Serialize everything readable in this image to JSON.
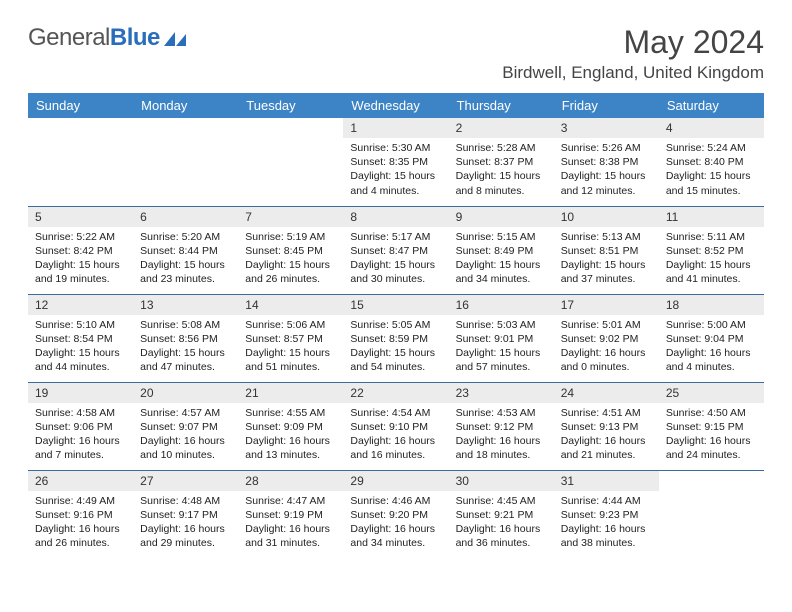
{
  "logo": {
    "word1": "General",
    "word2": "Blue"
  },
  "title": "May 2024",
  "location": "Birdwell, England, United Kingdom",
  "colors": {
    "header_bg": "#3d84c6",
    "header_fg": "#ffffff",
    "daynum_bg": "#ececec",
    "row_divider": "#3d6a9e",
    "logo_blue": "#2a6ebb"
  },
  "typography": {
    "title_size": 32,
    "location_size": 17,
    "header_size": 13,
    "daynum_size": 12,
    "body_size": 10.5
  },
  "dayNames": [
    "Sunday",
    "Monday",
    "Tuesday",
    "Wednesday",
    "Thursday",
    "Friday",
    "Saturday"
  ],
  "weeks": [
    [
      {
        "empty": true
      },
      {
        "empty": true
      },
      {
        "empty": true
      },
      {
        "num": "1",
        "sunrise": "Sunrise: 5:30 AM",
        "sunset": "Sunset: 8:35 PM",
        "daylight": "Daylight: 15 hours and 4 minutes."
      },
      {
        "num": "2",
        "sunrise": "Sunrise: 5:28 AM",
        "sunset": "Sunset: 8:37 PM",
        "daylight": "Daylight: 15 hours and 8 minutes."
      },
      {
        "num": "3",
        "sunrise": "Sunrise: 5:26 AM",
        "sunset": "Sunset: 8:38 PM",
        "daylight": "Daylight: 15 hours and 12 minutes."
      },
      {
        "num": "4",
        "sunrise": "Sunrise: 5:24 AM",
        "sunset": "Sunset: 8:40 PM",
        "daylight": "Daylight: 15 hours and 15 minutes."
      }
    ],
    [
      {
        "num": "5",
        "sunrise": "Sunrise: 5:22 AM",
        "sunset": "Sunset: 8:42 PM",
        "daylight": "Daylight: 15 hours and 19 minutes."
      },
      {
        "num": "6",
        "sunrise": "Sunrise: 5:20 AM",
        "sunset": "Sunset: 8:44 PM",
        "daylight": "Daylight: 15 hours and 23 minutes."
      },
      {
        "num": "7",
        "sunrise": "Sunrise: 5:19 AM",
        "sunset": "Sunset: 8:45 PM",
        "daylight": "Daylight: 15 hours and 26 minutes."
      },
      {
        "num": "8",
        "sunrise": "Sunrise: 5:17 AM",
        "sunset": "Sunset: 8:47 PM",
        "daylight": "Daylight: 15 hours and 30 minutes."
      },
      {
        "num": "9",
        "sunrise": "Sunrise: 5:15 AM",
        "sunset": "Sunset: 8:49 PM",
        "daylight": "Daylight: 15 hours and 34 minutes."
      },
      {
        "num": "10",
        "sunrise": "Sunrise: 5:13 AM",
        "sunset": "Sunset: 8:51 PM",
        "daylight": "Daylight: 15 hours and 37 minutes."
      },
      {
        "num": "11",
        "sunrise": "Sunrise: 5:11 AM",
        "sunset": "Sunset: 8:52 PM",
        "daylight": "Daylight: 15 hours and 41 minutes."
      }
    ],
    [
      {
        "num": "12",
        "sunrise": "Sunrise: 5:10 AM",
        "sunset": "Sunset: 8:54 PM",
        "daylight": "Daylight: 15 hours and 44 minutes."
      },
      {
        "num": "13",
        "sunrise": "Sunrise: 5:08 AM",
        "sunset": "Sunset: 8:56 PM",
        "daylight": "Daylight: 15 hours and 47 minutes."
      },
      {
        "num": "14",
        "sunrise": "Sunrise: 5:06 AM",
        "sunset": "Sunset: 8:57 PM",
        "daylight": "Daylight: 15 hours and 51 minutes."
      },
      {
        "num": "15",
        "sunrise": "Sunrise: 5:05 AM",
        "sunset": "Sunset: 8:59 PM",
        "daylight": "Daylight: 15 hours and 54 minutes."
      },
      {
        "num": "16",
        "sunrise": "Sunrise: 5:03 AM",
        "sunset": "Sunset: 9:01 PM",
        "daylight": "Daylight: 15 hours and 57 minutes."
      },
      {
        "num": "17",
        "sunrise": "Sunrise: 5:01 AM",
        "sunset": "Sunset: 9:02 PM",
        "daylight": "Daylight: 16 hours and 0 minutes."
      },
      {
        "num": "18",
        "sunrise": "Sunrise: 5:00 AM",
        "sunset": "Sunset: 9:04 PM",
        "daylight": "Daylight: 16 hours and 4 minutes."
      }
    ],
    [
      {
        "num": "19",
        "sunrise": "Sunrise: 4:58 AM",
        "sunset": "Sunset: 9:06 PM",
        "daylight": "Daylight: 16 hours and 7 minutes."
      },
      {
        "num": "20",
        "sunrise": "Sunrise: 4:57 AM",
        "sunset": "Sunset: 9:07 PM",
        "daylight": "Daylight: 16 hours and 10 minutes."
      },
      {
        "num": "21",
        "sunrise": "Sunrise: 4:55 AM",
        "sunset": "Sunset: 9:09 PM",
        "daylight": "Daylight: 16 hours and 13 minutes."
      },
      {
        "num": "22",
        "sunrise": "Sunrise: 4:54 AM",
        "sunset": "Sunset: 9:10 PM",
        "daylight": "Daylight: 16 hours and 16 minutes."
      },
      {
        "num": "23",
        "sunrise": "Sunrise: 4:53 AM",
        "sunset": "Sunset: 9:12 PM",
        "daylight": "Daylight: 16 hours and 18 minutes."
      },
      {
        "num": "24",
        "sunrise": "Sunrise: 4:51 AM",
        "sunset": "Sunset: 9:13 PM",
        "daylight": "Daylight: 16 hours and 21 minutes."
      },
      {
        "num": "25",
        "sunrise": "Sunrise: 4:50 AM",
        "sunset": "Sunset: 9:15 PM",
        "daylight": "Daylight: 16 hours and 24 minutes."
      }
    ],
    [
      {
        "num": "26",
        "sunrise": "Sunrise: 4:49 AM",
        "sunset": "Sunset: 9:16 PM",
        "daylight": "Daylight: 16 hours and 26 minutes."
      },
      {
        "num": "27",
        "sunrise": "Sunrise: 4:48 AM",
        "sunset": "Sunset: 9:17 PM",
        "daylight": "Daylight: 16 hours and 29 minutes."
      },
      {
        "num": "28",
        "sunrise": "Sunrise: 4:47 AM",
        "sunset": "Sunset: 9:19 PM",
        "daylight": "Daylight: 16 hours and 31 minutes."
      },
      {
        "num": "29",
        "sunrise": "Sunrise: 4:46 AM",
        "sunset": "Sunset: 9:20 PM",
        "daylight": "Daylight: 16 hours and 34 minutes."
      },
      {
        "num": "30",
        "sunrise": "Sunrise: 4:45 AM",
        "sunset": "Sunset: 9:21 PM",
        "daylight": "Daylight: 16 hours and 36 minutes."
      },
      {
        "num": "31",
        "sunrise": "Sunrise: 4:44 AM",
        "sunset": "Sunset: 9:23 PM",
        "daylight": "Daylight: 16 hours and 38 minutes."
      },
      {
        "empty": true
      }
    ]
  ]
}
